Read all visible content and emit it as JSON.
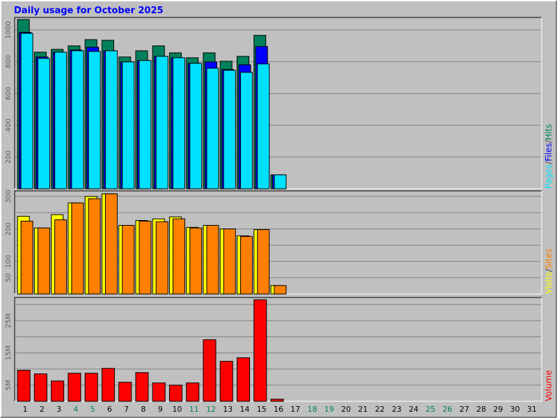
{
  "chart_data": [
    {
      "type": "bar",
      "title": "Daily usage for October 2025",
      "categories": [
        "1",
        "2",
        "3",
        "4",
        "5",
        "6",
        "7",
        "8",
        "9",
        "10",
        "11",
        "12",
        "13",
        "14",
        "15",
        "16",
        "17",
        "18",
        "19",
        "20",
        "21",
        "22",
        "23",
        "24",
        "25",
        "26",
        "27",
        "28",
        "29",
        "30",
        "31"
      ],
      "category_colors": [
        "#000000",
        "#000000",
        "#000000",
        "#00805c",
        "#00805c",
        "#000000",
        "#000000",
        "#000000",
        "#000000",
        "#000000",
        "#00805c",
        "#00805c",
        "#000000",
        "#000000",
        "#000000",
        "#000000",
        "#000000",
        "#00805c",
        "#00805c",
        "#000000",
        "#000000",
        "#000000",
        "#000000",
        "#000000",
        "#00805c",
        "#00805c",
        "#000000",
        "#000000",
        "#000000",
        "#000000",
        "#000000"
      ],
      "separator": "/",
      "series": [
        {
          "name": "Pages",
          "color": "#00e0ff",
          "values": [
            979,
            821,
            860,
            869,
            865,
            869,
            799,
            808,
            834,
            825,
            790,
            759,
            746,
            733,
            786,
            88,
            0,
            0,
            0,
            0,
            0,
            0,
            0,
            0,
            0,
            0,
            0,
            0,
            0,
            0,
            0
          ]
        },
        {
          "name": "Files",
          "color": "#0000ff",
          "values": [
            985,
            830,
            860,
            874,
            891,
            869,
            799,
            808,
            834,
            825,
            790,
            799,
            751,
            781,
            896,
            88,
            0,
            0,
            0,
            0,
            0,
            0,
            0,
            0,
            0,
            0,
            0,
            0,
            0,
            0,
            0
          ]
        },
        {
          "name": "Hits",
          "color": "#00805c",
          "values": [
            1066,
            860,
            878,
            900,
            939,
            935,
            830,
            869,
            900,
            856,
            825,
            856,
            803,
            834,
            966,
            88,
            0,
            0,
            0,
            0,
            0,
            0,
            0,
            0,
            0,
            0,
            0,
            0,
            0,
            0,
            0
          ]
        }
      ],
      "ylim": [
        0,
        1079
      ],
      "yticks": [
        200,
        400,
        600,
        800,
        1000
      ],
      "ygrid": [
        200,
        400,
        600,
        800,
        1000
      ]
    },
    {
      "type": "bar",
      "separator": "/",
      "series": [
        {
          "name": "Visits",
          "color": "#ffff00",
          "values": [
            239,
            203,
            244,
            280,
            300,
            308,
            211,
            226,
            231,
            237,
            205,
            211,
            200,
            179,
            198,
            26,
            0,
            0,
            0,
            0,
            0,
            0,
            0,
            0,
            0,
            0,
            0,
            0,
            0,
            0,
            0
          ]
        },
        {
          "name": "Sites",
          "color": "#ff8000",
          "values": [
            224,
            203,
            228,
            280,
            293,
            308,
            211,
            224,
            222,
            231,
            203,
            211,
            200,
            177,
            198,
            26,
            0,
            0,
            0,
            0,
            0,
            0,
            0,
            0,
            0,
            0,
            0,
            0,
            0,
            0,
            0
          ]
        }
      ],
      "ylim": [
        0,
        317
      ],
      "yticks": [
        50,
        100,
        200,
        300
      ],
      "ygrid": [
        50,
        100,
        150,
        200,
        250,
        300
      ]
    },
    {
      "type": "bar",
      "series": [
        {
          "name": "Volume",
          "color": "#ff0000",
          "values": [
            9.6,
            8.5,
            6.3,
            8.7,
            8.7,
            10.2,
            5.9,
            8.9,
            5.7,
            5.0,
            5.7,
            19.1,
            12.4,
            13.5,
            31.5,
            0.65,
            0,
            0,
            0,
            0,
            0,
            0,
            0,
            0,
            0,
            0,
            0,
            0,
            0,
            0,
            0
          ]
        }
      ],
      "ylim": [
        0,
        32.2
      ],
      "yticks": [
        {
          "value": 5,
          "label": "5M"
        },
        {
          "value": 15,
          "label": "15M"
        },
        {
          "value": 25,
          "label": "25M"
        }
      ],
      "ygrid": [
        5,
        10,
        15,
        20,
        25,
        30
      ]
    }
  ]
}
